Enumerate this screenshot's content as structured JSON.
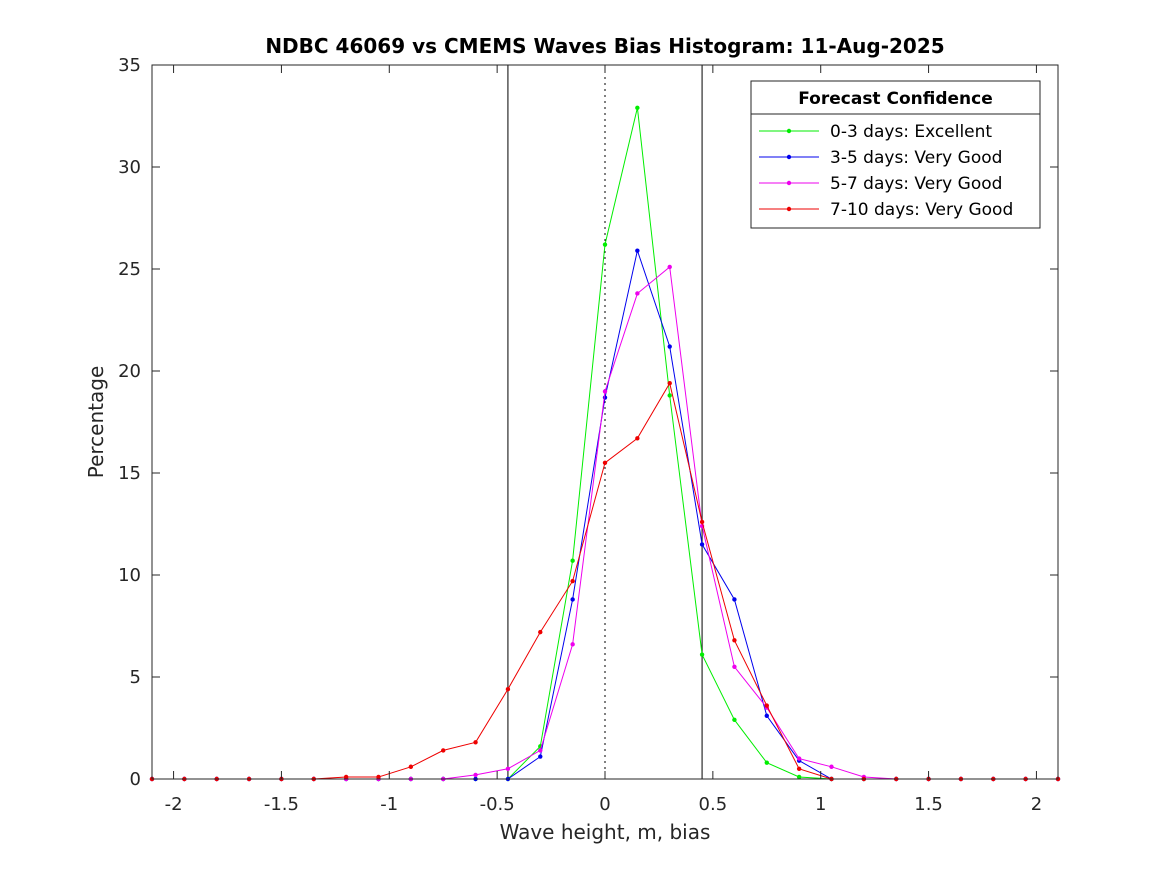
{
  "chart_data": {
    "type": "line",
    "title": "NDBC 46069 vs CMEMS Waves Bias Histogram: 11-Aug-2025",
    "xlabel": "Wave height, m, bias",
    "ylabel": "Percentage",
    "xlim": [
      -2.1,
      2.1
    ],
    "ylim": [
      0,
      35
    ],
    "xticks": [
      -2,
      -1.5,
      -1,
      -0.5,
      0,
      0.5,
      1,
      1.5,
      2
    ],
    "xtick_labels": [
      "-2",
      "-1.5",
      "-1",
      "-0.5",
      "0",
      "0.5",
      "1",
      "1.5",
      "2"
    ],
    "yticks": [
      0,
      5,
      10,
      15,
      20,
      25,
      30,
      35
    ],
    "ytick_labels": [
      "0",
      "5",
      "10",
      "15",
      "20",
      "25",
      "30",
      "35"
    ],
    "grid": false,
    "reference_lines": [
      {
        "x": -0.45,
        "style": "solid",
        "color": "#000000"
      },
      {
        "x": 0,
        "style": "dotted",
        "color": "#000000"
      },
      {
        "x": 0.45,
        "style": "solid",
        "color": "#000000"
      }
    ],
    "legend": {
      "title": "Forecast Confidence",
      "placement": "top-right"
    },
    "x": [
      -2.1,
      -1.95,
      -1.8,
      -1.65,
      -1.5,
      -1.35,
      -1.2,
      -1.05,
      -0.9,
      -0.75,
      -0.6,
      -0.45,
      -0.3,
      -0.15,
      0,
      0.15,
      0.3,
      0.45,
      0.6,
      0.75,
      0.9,
      1.05,
      1.2,
      1.35,
      1.5,
      1.65,
      1.8,
      1.95,
      2.1
    ],
    "series": [
      {
        "name": "0-3 days: Excellent",
        "color": "#00ee00",
        "values": [
          0,
          0,
          0,
          0,
          0,
          0,
          0,
          0,
          0,
          0,
          0,
          0,
          1.6,
          10.7,
          26.2,
          32.9,
          18.8,
          6.1,
          2.9,
          0.8,
          0.1,
          0,
          0,
          0,
          0,
          0,
          0,
          0,
          0
        ]
      },
      {
        "name": "3-5 days: Very Good",
        "color": "#0000ee",
        "values": [
          0,
          0,
          0,
          0,
          0,
          0,
          0,
          0,
          0,
          0,
          0,
          0,
          1.1,
          8.8,
          18.7,
          25.9,
          21.2,
          11.5,
          8.8,
          3.1,
          0.9,
          0,
          0,
          0,
          0,
          0,
          0,
          0,
          0
        ]
      },
      {
        "name": "5-7 days: Very Good",
        "color": "#ee00ee",
        "values": [
          0,
          0,
          0,
          0,
          0,
          0,
          0,
          0,
          0,
          0,
          0.2,
          0.5,
          1.4,
          6.6,
          19.0,
          23.8,
          25.1,
          12.4,
          5.5,
          3.5,
          1.0,
          0.6,
          0.1,
          0,
          0,
          0,
          0,
          0,
          0
        ]
      },
      {
        "name": "7-10 days: Very Good",
        "color": "#ee0000",
        "values": [
          0,
          0,
          0,
          0,
          0,
          0,
          0.1,
          0.1,
          0.6,
          1.4,
          1.8,
          4.4,
          7.2,
          9.7,
          15.5,
          16.7,
          19.4,
          12.6,
          6.8,
          3.6,
          0.5,
          0,
          0,
          0,
          0,
          0,
          0,
          0,
          0
        ]
      }
    ]
  }
}
